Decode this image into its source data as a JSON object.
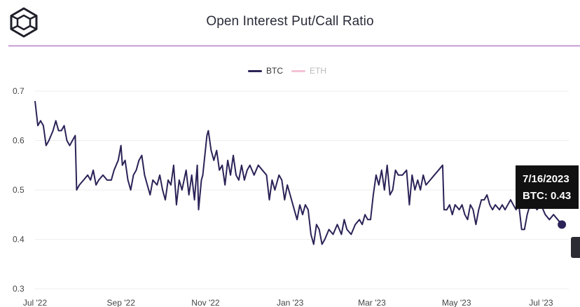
{
  "header": {
    "title": "Open Interest Put/Call Ratio"
  },
  "legend": {
    "items": [
      {
        "label": "BTC",
        "color": "#2b2357",
        "active": true
      },
      {
        "label": "ETH",
        "color": "#f4c2d6",
        "active": false
      }
    ]
  },
  "tooltip": {
    "date": "7/16/2023",
    "value_text": "BTC: 0.43"
  },
  "colors": {
    "btc_line": "#2b2357",
    "eth_line": "#f4c2d6",
    "header_rule": "#9b4fb3",
    "gridline": "#eeeeee"
  },
  "chart_data": {
    "type": "line",
    "title": "Open Interest Put/Call Ratio",
    "x_ticks": [
      "Jul '22",
      "Sep '22",
      "Nov '22",
      "Jan '23",
      "Mar '23",
      "May '23",
      "Jul '23"
    ],
    "y_ticks": [
      0.3,
      0.4,
      0.5,
      0.6,
      0.7
    ],
    "ylim": [
      0.3,
      0.7
    ],
    "xlim": [
      "2022-07-01",
      "2023-07-21"
    ],
    "grid": "horizontal",
    "legend_position": "top",
    "highlight": {
      "date": "2023-07-16",
      "value": 0.43
    },
    "series": [
      {
        "name": "BTC",
        "points": [
          [
            "2022-07-01",
            0.68
          ],
          [
            "2022-07-03",
            0.63
          ],
          [
            "2022-07-05",
            0.64
          ],
          [
            "2022-07-07",
            0.63
          ],
          [
            "2022-07-09",
            0.59
          ],
          [
            "2022-07-11",
            0.6
          ],
          [
            "2022-07-14",
            0.62
          ],
          [
            "2022-07-16",
            0.64
          ],
          [
            "2022-07-18",
            0.62
          ],
          [
            "2022-07-20",
            0.62
          ],
          [
            "2022-07-22",
            0.63
          ],
          [
            "2022-07-24",
            0.6
          ],
          [
            "2022-07-26",
            0.59
          ],
          [
            "2022-07-28",
            0.6
          ],
          [
            "2022-07-30",
            0.61
          ],
          [
            "2022-07-31",
            0.5
          ],
          [
            "2022-08-02",
            0.51
          ],
          [
            "2022-08-05",
            0.52
          ],
          [
            "2022-08-08",
            0.53
          ],
          [
            "2022-08-10",
            0.52
          ],
          [
            "2022-08-12",
            0.54
          ],
          [
            "2022-08-14",
            0.51
          ],
          [
            "2022-08-16",
            0.52
          ],
          [
            "2022-08-19",
            0.53
          ],
          [
            "2022-08-22",
            0.52
          ],
          [
            "2022-08-25",
            0.52
          ],
          [
            "2022-08-27",
            0.54
          ],
          [
            "2022-08-30",
            0.56
          ],
          [
            "2022-09-01",
            0.59
          ],
          [
            "2022-09-02",
            0.55
          ],
          [
            "2022-09-04",
            0.56
          ],
          [
            "2022-09-06",
            0.52
          ],
          [
            "2022-09-08",
            0.5
          ],
          [
            "2022-09-10",
            0.53
          ],
          [
            "2022-09-12",
            0.54
          ],
          [
            "2022-09-14",
            0.56
          ],
          [
            "2022-09-16",
            0.57
          ],
          [
            "2022-09-18",
            0.53
          ],
          [
            "2022-09-20",
            0.51
          ],
          [
            "2022-09-22",
            0.49
          ],
          [
            "2022-09-24",
            0.52
          ],
          [
            "2022-09-27",
            0.51
          ],
          [
            "2022-09-29",
            0.53
          ],
          [
            "2022-10-01",
            0.5
          ],
          [
            "2022-10-03",
            0.48
          ],
          [
            "2022-10-05",
            0.52
          ],
          [
            "2022-10-07",
            0.51
          ],
          [
            "2022-10-09",
            0.55
          ],
          [
            "2022-10-11",
            0.47
          ],
          [
            "2022-10-13",
            0.52
          ],
          [
            "2022-10-15",
            0.5
          ],
          [
            "2022-10-18",
            0.54
          ],
          [
            "2022-10-20",
            0.49
          ],
          [
            "2022-10-22",
            0.53
          ],
          [
            "2022-10-24",
            0.48
          ],
          [
            "2022-10-26",
            0.55
          ],
          [
            "2022-10-27",
            0.46
          ],
          [
            "2022-10-29",
            0.52
          ],
          [
            "2022-10-30",
            0.53
          ],
          [
            "2022-11-02",
            0.61
          ],
          [
            "2022-11-03",
            0.62
          ],
          [
            "2022-11-05",
            0.58
          ],
          [
            "2022-11-07",
            0.56
          ],
          [
            "2022-11-09",
            0.58
          ],
          [
            "2022-11-11",
            0.54
          ],
          [
            "2022-11-13",
            0.55
          ],
          [
            "2022-11-15",
            0.51
          ],
          [
            "2022-11-17",
            0.56
          ],
          [
            "2022-11-19",
            0.53
          ],
          [
            "2022-11-21",
            0.57
          ],
          [
            "2022-11-23",
            0.53
          ],
          [
            "2022-11-25",
            0.52
          ],
          [
            "2022-11-27",
            0.55
          ],
          [
            "2022-11-29",
            0.52
          ],
          [
            "2022-12-01",
            0.54
          ],
          [
            "2022-12-03",
            0.55
          ],
          [
            "2022-12-06",
            0.53
          ],
          [
            "2022-12-09",
            0.55
          ],
          [
            "2022-12-12",
            0.54
          ],
          [
            "2022-12-15",
            0.53
          ],
          [
            "2022-12-17",
            0.48
          ],
          [
            "2022-12-19",
            0.52
          ],
          [
            "2022-12-21",
            0.5
          ],
          [
            "2022-12-24",
            0.53
          ],
          [
            "2022-12-26",
            0.52
          ],
          [
            "2022-12-28",
            0.48
          ],
          [
            "2022-12-30",
            0.51
          ],
          [
            "2023-01-01",
            0.49
          ],
          [
            "2023-01-04",
            0.46
          ],
          [
            "2023-01-06",
            0.44
          ],
          [
            "2023-01-08",
            0.47
          ],
          [
            "2023-01-10",
            0.45
          ],
          [
            "2023-01-12",
            0.47
          ],
          [
            "2023-01-14",
            0.46
          ],
          [
            "2023-01-16",
            0.41
          ],
          [
            "2023-01-18",
            0.39
          ],
          [
            "2023-01-20",
            0.43
          ],
          [
            "2023-01-22",
            0.42
          ],
          [
            "2023-01-24",
            0.39
          ],
          [
            "2023-01-26",
            0.4
          ],
          [
            "2023-01-29",
            0.42
          ],
          [
            "2023-02-01",
            0.41
          ],
          [
            "2023-02-04",
            0.43
          ],
          [
            "2023-02-07",
            0.41
          ],
          [
            "2023-02-09",
            0.44
          ],
          [
            "2023-02-11",
            0.42
          ],
          [
            "2023-02-14",
            0.41
          ],
          [
            "2023-02-17",
            0.43
          ],
          [
            "2023-02-20",
            0.44
          ],
          [
            "2023-02-22",
            0.43
          ],
          [
            "2023-02-24",
            0.45
          ],
          [
            "2023-02-26",
            0.44
          ],
          [
            "2023-02-28",
            0.44
          ],
          [
            "2023-03-02",
            0.49
          ],
          [
            "2023-03-04",
            0.53
          ],
          [
            "2023-03-06",
            0.51
          ],
          [
            "2023-03-08",
            0.54
          ],
          [
            "2023-03-10",
            0.5
          ],
          [
            "2023-03-12",
            0.55
          ],
          [
            "2023-03-14",
            0.49
          ],
          [
            "2023-03-16",
            0.5
          ],
          [
            "2023-03-18",
            0.54
          ],
          [
            "2023-03-20",
            0.53
          ],
          [
            "2023-03-23",
            0.53
          ],
          [
            "2023-03-26",
            0.54
          ],
          [
            "2023-03-28",
            0.47
          ],
          [
            "2023-03-30",
            0.53
          ],
          [
            "2023-04-01",
            0.5
          ],
          [
            "2023-04-03",
            0.52
          ],
          [
            "2023-04-05",
            0.5
          ],
          [
            "2023-04-07",
            0.53
          ],
          [
            "2023-04-09",
            0.51
          ],
          [
            "2023-04-12",
            0.52
          ],
          [
            "2023-04-15",
            0.53
          ],
          [
            "2023-04-18",
            0.54
          ],
          [
            "2023-04-21",
            0.55
          ],
          [
            "2023-04-22",
            0.46
          ],
          [
            "2023-04-24",
            0.46
          ],
          [
            "2023-04-26",
            0.47
          ],
          [
            "2023-04-28",
            0.45
          ],
          [
            "2023-04-30",
            0.47
          ],
          [
            "2023-05-03",
            0.46
          ],
          [
            "2023-05-05",
            0.47
          ],
          [
            "2023-05-07",
            0.45
          ],
          [
            "2023-05-09",
            0.44
          ],
          [
            "2023-05-11",
            0.47
          ],
          [
            "2023-05-13",
            0.46
          ],
          [
            "2023-05-15",
            0.43
          ],
          [
            "2023-05-17",
            0.46
          ],
          [
            "2023-05-19",
            0.48
          ],
          [
            "2023-05-21",
            0.48
          ],
          [
            "2023-05-23",
            0.49
          ],
          [
            "2023-05-25",
            0.47
          ],
          [
            "2023-05-27",
            0.46
          ],
          [
            "2023-05-29",
            0.47
          ],
          [
            "2023-06-01",
            0.46
          ],
          [
            "2023-06-03",
            0.47
          ],
          [
            "2023-06-05",
            0.46
          ],
          [
            "2023-06-07",
            0.47
          ],
          [
            "2023-06-09",
            0.48
          ],
          [
            "2023-06-11",
            0.47
          ],
          [
            "2023-06-13",
            0.46
          ],
          [
            "2023-06-15",
            0.47
          ],
          [
            "2023-06-17",
            0.42
          ],
          [
            "2023-06-19",
            0.42
          ],
          [
            "2023-06-21",
            0.45
          ],
          [
            "2023-06-23",
            0.47
          ],
          [
            "2023-06-26",
            0.47
          ],
          [
            "2023-06-28",
            0.46
          ],
          [
            "2023-07-01",
            0.47
          ],
          [
            "2023-07-04",
            0.45
          ],
          [
            "2023-07-07",
            0.44
          ],
          [
            "2023-07-10",
            0.45
          ],
          [
            "2023-07-13",
            0.44
          ],
          [
            "2023-07-16",
            0.43
          ]
        ]
      }
    ]
  }
}
